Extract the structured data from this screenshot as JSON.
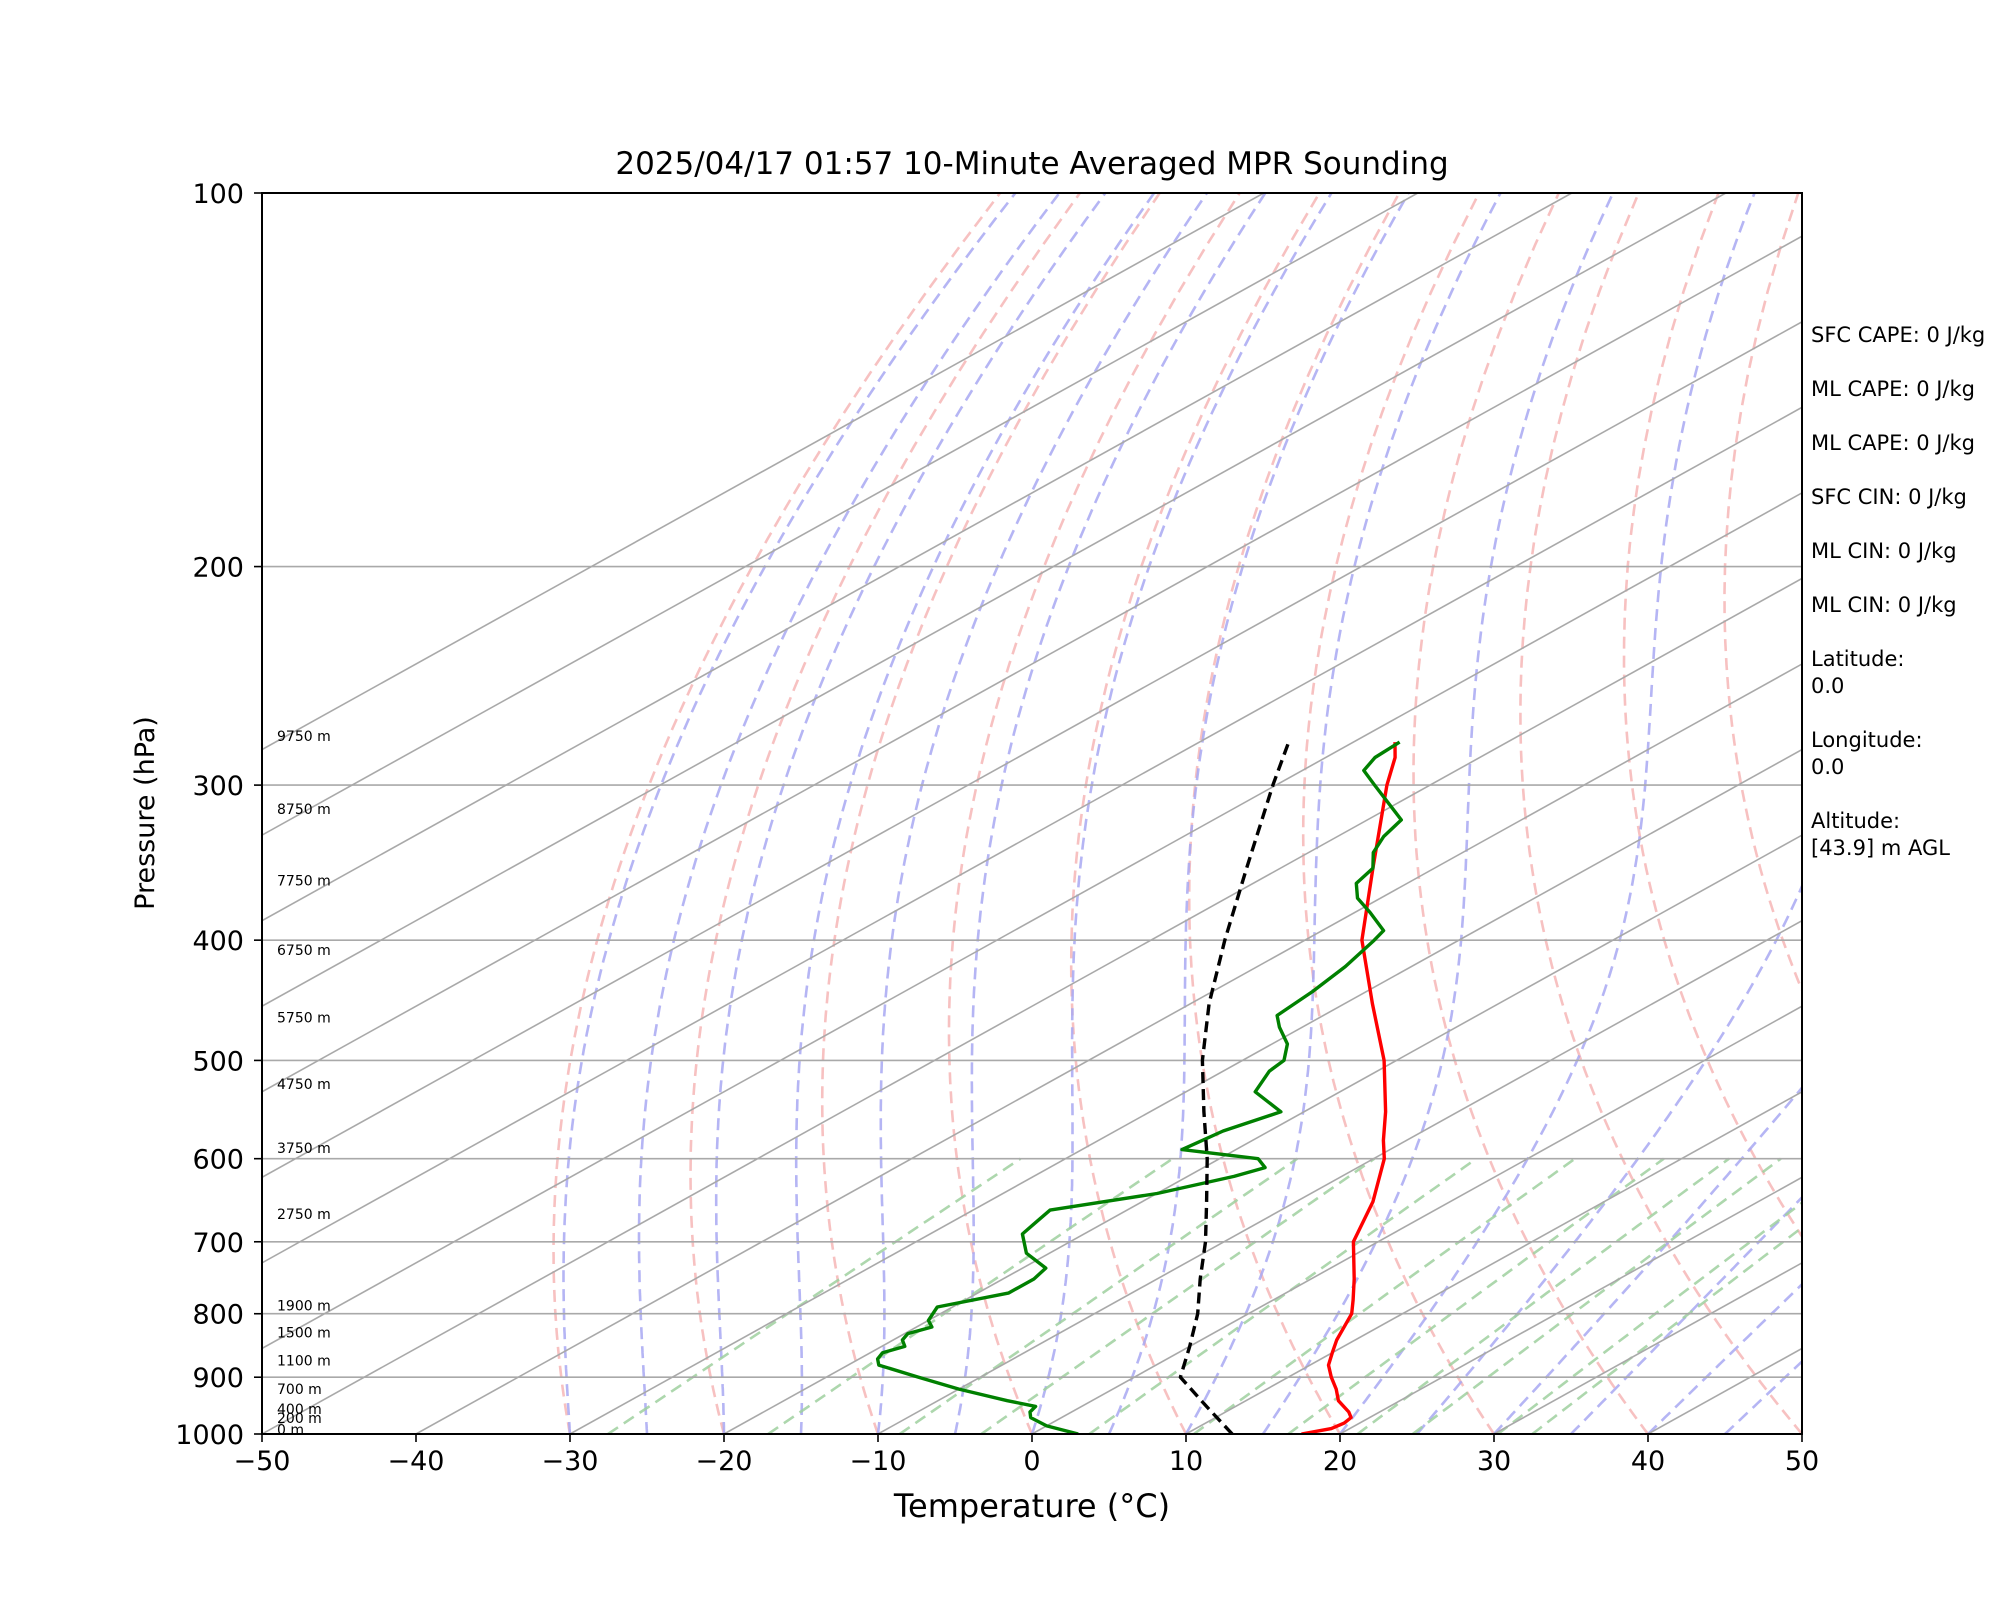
{
  "chart_data": {
    "type": "line",
    "title": "2025/04/17 01:57 10-Minute Averaged MPR Sounding",
    "xlabel": "Temperature (°C)",
    "ylabel": "Pressure (hPa)",
    "xlim": [
      -50,
      50
    ],
    "ylim": [
      1000,
      100
    ],
    "y_scale": "log",
    "skew": "skew-T",
    "grid": true,
    "x_ticks": [
      "−50",
      "−40",
      "−30",
      "−20",
      "−10",
      "0",
      "10",
      "20",
      "30",
      "40",
      "50"
    ],
    "y_ticks": [
      "100",
      "200",
      "300",
      "400",
      "500",
      "600",
      "700",
      "800",
      "900",
      "1000"
    ],
    "height_labels": [
      {
        "p": 277,
        "label": "9750 m"
      },
      {
        "p": 317,
        "label": "8750 m"
      },
      {
        "p": 362,
        "label": "7750 m"
      },
      {
        "p": 412,
        "label": "6750 m"
      },
      {
        "p": 467,
        "label": "5750 m"
      },
      {
        "p": 528,
        "label": "4750 m"
      },
      {
        "p": 595,
        "label": "3750 m"
      },
      {
        "p": 672,
        "label": "2750 m"
      },
      {
        "p": 797,
        "label": "1900 m"
      },
      {
        "p": 838,
        "label": "1500 m"
      },
      {
        "p": 882,
        "label": "1100 m"
      },
      {
        "p": 930,
        "label": "700 m"
      },
      {
        "p": 965,
        "label": "400 m"
      },
      {
        "p": 982,
        "label": "200 m"
      },
      {
        "p": 1003,
        "label": "0 m"
      }
    ],
    "series": [
      {
        "color": "#ff0000",
        "points": [
          [
            1000,
            17.5
          ],
          [
            990,
            18.8
          ],
          [
            980,
            19.0
          ],
          [
            970,
            18.8
          ],
          [
            960,
            18.0
          ],
          [
            940,
            16.0
          ],
          [
            920,
            14.5
          ],
          [
            900,
            12.8
          ],
          [
            880,
            11.2
          ],
          [
            860,
            10.0
          ],
          [
            840,
            8.8
          ],
          [
            800,
            6.7
          ],
          [
            780,
            5.2
          ],
          [
            750,
            2.8
          ],
          [
            700,
            -1.6
          ],
          [
            650,
            -5.0
          ],
          [
            600,
            -9.3
          ],
          [
            580,
            -11.5
          ],
          [
            550,
            -14.7
          ],
          [
            500,
            -20.8
          ],
          [
            450,
            -28.2
          ],
          [
            400,
            -36.3
          ],
          [
            350,
            -44.0
          ],
          [
            300,
            -52.8
          ],
          [
            285,
            -55.5
          ],
          [
            277,
            -57.3
          ]
        ]
      },
      {
        "color": "#008000",
        "points": [
          [
            1000,
            3.0
          ],
          [
            985,
            0.0
          ],
          [
            970,
            -2.0
          ],
          [
            960,
            -2.7
          ],
          [
            950,
            -3.0
          ],
          [
            940,
            -5.5
          ],
          [
            920,
            -10.0
          ],
          [
            900,
            -14.0
          ],
          [
            880,
            -18.0
          ],
          [
            870,
            -18.8
          ],
          [
            860,
            -19.2
          ],
          [
            850,
            -18.5
          ],
          [
            840,
            -19.4
          ],
          [
            830,
            -19.8
          ],
          [
            820,
            -19.0
          ],
          [
            810,
            -20.0
          ],
          [
            790,
            -21.0
          ],
          [
            770,
            -18.0
          ],
          [
            750,
            -18.0
          ],
          [
            735,
            -18.5
          ],
          [
            715,
            -21.5
          ],
          [
            690,
            -24.0
          ],
          [
            675,
            -24.5
          ],
          [
            660,
            -25.0
          ],
          [
            640,
            -20.0
          ],
          [
            620,
            -17.0
          ],
          [
            610,
            -16.0
          ],
          [
            600,
            -17.5
          ],
          [
            590,
            -23.5
          ],
          [
            570,
            -23.0
          ],
          [
            550,
            -21.5
          ],
          [
            530,
            -25.5
          ],
          [
            510,
            -27.0
          ],
          [
            500,
            -27.3
          ],
          [
            485,
            -29.0
          ],
          [
            470,
            -31.5
          ],
          [
            460,
            -33.0
          ],
          [
            440,
            -33.5
          ],
          [
            420,
            -34.3
          ],
          [
            400,
            -35.5
          ],
          [
            393,
            -36.0
          ],
          [
            380,
            -39.0
          ],
          [
            370,
            -41.5
          ],
          [
            360,
            -43.3
          ],
          [
            350,
            -44.0
          ],
          [
            340,
            -45.8
          ],
          [
            330,
            -47.0
          ],
          [
            320,
            -47.8
          ],
          [
            300,
            -53.6
          ],
          [
            292,
            -56.0
          ],
          [
            285,
            -56.8
          ],
          [
            277,
            -57.0
          ]
        ]
      },
      {
        "color": "#000000",
        "style": "dashed",
        "points": [
          [
            1000,
            13.0
          ],
          [
            950,
            8.1
          ],
          [
            900,
            3.0
          ],
          [
            850,
            0.0
          ],
          [
            800,
            -3.3
          ],
          [
            750,
            -7.2
          ],
          [
            700,
            -11.2
          ],
          [
            650,
            -15.8
          ],
          [
            600,
            -20.8
          ],
          [
            550,
            -26.5
          ],
          [
            500,
            -32.6
          ],
          [
            450,
            -38.8
          ],
          [
            400,
            -45.2
          ],
          [
            350,
            -52.2
          ],
          [
            300,
            -60.2
          ],
          [
            277,
            -64.2
          ]
        ]
      }
    ],
    "side_info": [
      "SFC CAPE: 0 J/kg",
      "ML CAPE: 0 J/kg",
      "ML CAPE: 0 J/kg",
      "SFC CIN: 0 J/kg",
      "ML CIN: 0 J/kg",
      "ML CIN: 0 J/kg",
      "Latitude:",
      "0.0",
      "Longitude:",
      "0.0",
      "Altitude:",
      "[43.9] m AGL"
    ]
  }
}
